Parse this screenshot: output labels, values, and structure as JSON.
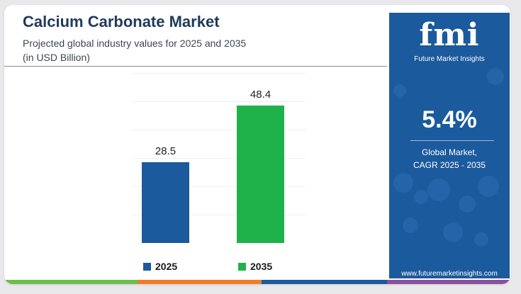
{
  "header": {
    "title": "Calcium Carbonate Market",
    "subtitle_line1": "Projected global industry values for 2025 and 2035",
    "subtitle_line2": "(in USD Billion)"
  },
  "chart_data": {
    "type": "bar",
    "title": "Calcium Carbonate Market",
    "subtitle": "Projected global industry values for 2025 and 2035 (in USD Billion)",
    "categories": [
      "2025",
      "2035"
    ],
    "values": [
      28.5,
      48.4
    ],
    "value_labels": [
      "28.5",
      "48.4"
    ],
    "colors": [
      "#1b5a9c",
      "#1fb24a"
    ],
    "legend": [
      "2025",
      "2035"
    ],
    "legend_position": "bottom",
    "ylim": [
      0,
      60
    ],
    "grid": true
  },
  "side_panel": {
    "logo_mark": "fmi",
    "logo_text": "Future Market Insights",
    "cagr_value": "5.4%",
    "cagr_label_line1": "Global Market,",
    "cagr_label_line2": "CAGR 2025 - 2035",
    "url": "www.futuremarketinsights.com",
    "background": "#1b5a9c"
  },
  "footer_strip_colors": [
    "#6cc04a",
    "#f07b2a",
    "#1b5a9c",
    "#8a4f9e"
  ]
}
